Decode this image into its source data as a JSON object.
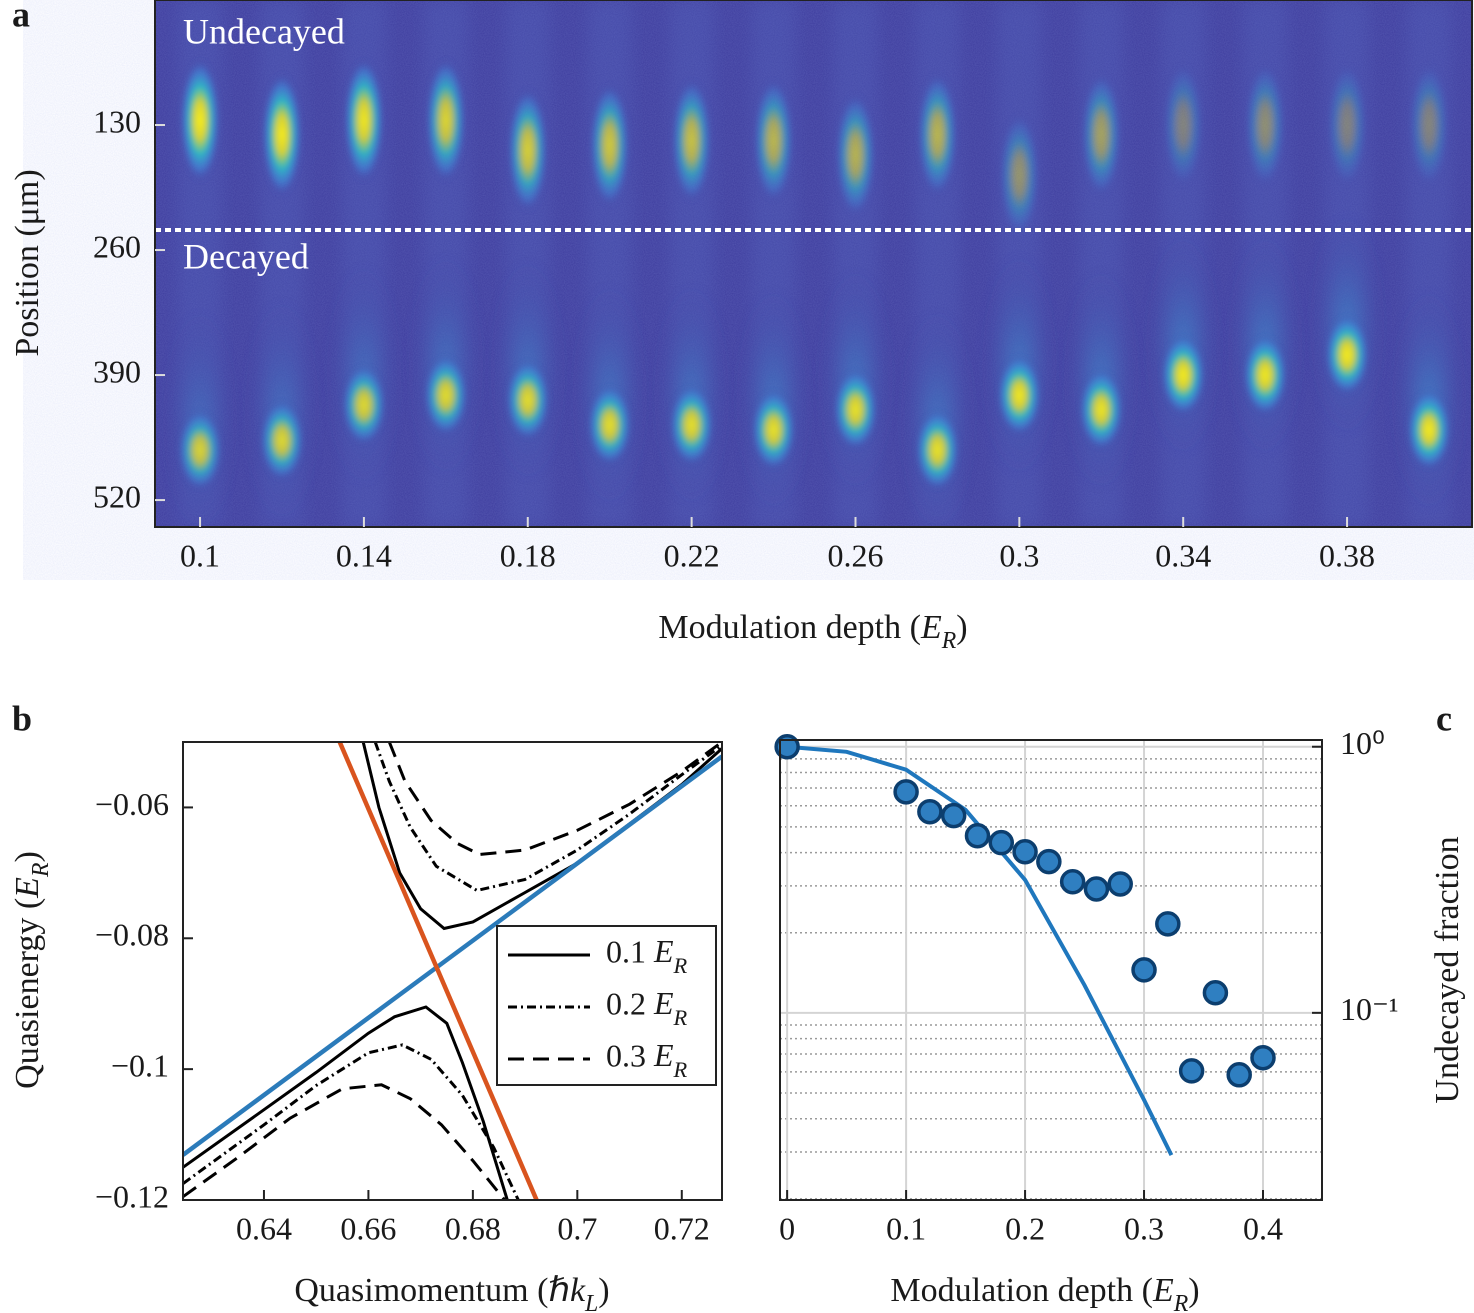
{
  "chart_data": [
    {
      "type": "image",
      "panel": "a",
      "xlabel": "Modulation depth (ER)",
      "ylabel": "Position (μm)",
      "annotations": [
        "Undecayed",
        "Decayed"
      ],
      "xlim": [
        0.089,
        0.4105
      ],
      "ylim": [
        0,
        548
      ],
      "y_inverted": true,
      "xticks": [
        0.1,
        0.14,
        0.18,
        0.22,
        0.26,
        0.3,
        0.34,
        0.38
      ],
      "yticks": [
        130,
        260,
        390,
        520
      ],
      "x": [
        0.1,
        0.12,
        0.14,
        0.16,
        0.18,
        0.2,
        0.22,
        0.24,
        0.26,
        0.28,
        0.3,
        0.32,
        0.34,
        0.36,
        0.38,
        0.4
      ],
      "undecayed_y": [
        125,
        140,
        125,
        125,
        156,
        151,
        146,
        146,
        161,
        140,
        182,
        140,
        130,
        130,
        130,
        130
      ],
      "decayed_y": [
        468,
        458,
        421,
        411,
        416,
        442,
        442,
        447,
        426,
        468,
        411,
        426,
        390,
        390,
        369,
        447
      ]
    },
    {
      "type": "line",
      "panel": "b",
      "xlabel": "Quasimomentum (ℏkL)",
      "ylabel": "Quasienergy (ER)",
      "xlim": [
        0.6245,
        0.7277
      ],
      "ylim": [
        -0.12,
        -0.05
      ],
      "xticks": [
        0.64,
        0.66,
        0.68,
        0.7,
        0.72
      ],
      "yticks": [
        {
          "value": -0.06,
          "label": "−0.06"
        },
        {
          "value": -0.08,
          "label": "−0.08"
        },
        {
          "value": -0.1,
          "label": "−0.1"
        },
        {
          "value": -0.12,
          "label": "−0.12"
        }
      ],
      "legend": "right",
      "series": [
        {
          "color": "#2b7bba",
          "dash": "solid",
          "x": [
            0.6245,
            0.7277
          ],
          "values": [
            -0.1131,
            -0.0522
          ]
        },
        {
          "color": "#d9541e",
          "dash": "solid",
          "x": [
            0.6545,
            0.6922
          ],
          "values": [
            -0.05,
            -0.12
          ]
        },
        {
          "name": "0.1 ER",
          "color": "#000000",
          "dash": "solid",
          "x": [
            0.659,
            0.662,
            0.666,
            0.67,
            0.6745,
            0.68,
            0.69,
            0.7,
            0.71,
            0.72,
            0.7277,
            null,
            0.6245,
            0.64,
            0.65,
            0.66,
            0.665,
            0.671,
            0.675,
            0.678,
            0.682,
            0.6866
          ],
          "values": [
            -0.05,
            -0.06,
            -0.07,
            -0.0755,
            -0.0785,
            -0.0775,
            -0.073,
            -0.0685,
            -0.0625,
            -0.0565,
            -0.051,
            null,
            -0.115,
            -0.1062,
            -0.1005,
            -0.0945,
            -0.092,
            -0.0905,
            -0.093,
            -0.099,
            -0.108,
            -0.12
          ]
        },
        {
          "name": "0.2 ER",
          "color": "#000000",
          "dash": "dashdot",
          "x": [
            0.6613,
            0.664,
            0.668,
            0.673,
            0.6808,
            0.69,
            0.7,
            0.71,
            0.72,
            0.7277,
            null,
            0.6245,
            0.64,
            0.65,
            0.66,
            0.6665,
            0.672,
            0.678,
            0.684,
            0.6887
          ],
          "values": [
            -0.05,
            -0.056,
            -0.063,
            -0.069,
            -0.0727,
            -0.071,
            -0.0665,
            -0.061,
            -0.055,
            -0.0505,
            null,
            -0.1175,
            -0.1085,
            -0.1025,
            -0.0975,
            -0.0963,
            -0.0985,
            -0.104,
            -0.112,
            -0.12
          ]
        },
        {
          "name": "0.3 ER",
          "color": "#000000",
          "dash": "dashed",
          "x": [
            0.664,
            0.667,
            0.672,
            0.677,
            0.6813,
            0.69,
            0.7,
            0.71,
            0.72,
            0.7277,
            null,
            0.6245,
            0.635,
            0.645,
            0.655,
            0.6625,
            0.668,
            0.674,
            0.68,
            0.6861
          ],
          "values": [
            -0.05,
            -0.056,
            -0.062,
            -0.0655,
            -0.0672,
            -0.0665,
            -0.0635,
            -0.0595,
            -0.0545,
            -0.05,
            null,
            -0.1195,
            -0.1135,
            -0.1075,
            -0.103,
            -0.1024,
            -0.1045,
            -0.1085,
            -0.114,
            -0.12
          ]
        }
      ]
    },
    {
      "type": "scatter",
      "panel": "c",
      "xlabel": "Modulation depth (ER)",
      "ylabel": "Undecayed fraction",
      "xlim": [
        -0.006,
        0.4496
      ],
      "ylim": [
        0.0198,
        1.06
      ],
      "ylog": true,
      "grid": true,
      "xticks": [
        0,
        0.1,
        0.2,
        0.3,
        0.4
      ],
      "yticks": [
        {
          "value": 1,
          "label": "10⁰"
        },
        {
          "value": 0.1,
          "label": "10⁻¹"
        }
      ],
      "minor_yticks": [
        0.02,
        0.03,
        0.04,
        0.05,
        0.06,
        0.07,
        0.08,
        0.09,
        0.2,
        0.3,
        0.4,
        0.5,
        0.6,
        0.7,
        0.8,
        0.9
      ],
      "series": [
        {
          "type": "line",
          "color": "#1f77bd",
          "x": [
            0,
            0.05,
            0.1,
            0.15,
            0.2,
            0.25,
            0.3,
            0.323
          ],
          "values": [
            1,
            0.957,
            0.82,
            0.579,
            0.316,
            0.127,
            0.0471,
            0.0292
          ]
        },
        {
          "type": "scatter",
          "color": "#2f7fc1",
          "edgecolor": "#0c3e6e",
          "x": [
            0,
            0.1,
            0.12,
            0.14,
            0.16,
            0.18,
            0.2,
            0.22,
            0.24,
            0.26,
            0.28,
            0.3,
            0.32,
            0.34,
            0.36,
            0.38,
            0.4
          ],
          "values": [
            1,
            0.677,
            0.57,
            0.551,
            0.463,
            0.436,
            0.403,
            0.37,
            0.311,
            0.292,
            0.305,
            0.145,
            0.216,
            0.0605,
            0.119,
            0.0585,
            0.0678
          ]
        }
      ]
    }
  ]
}
